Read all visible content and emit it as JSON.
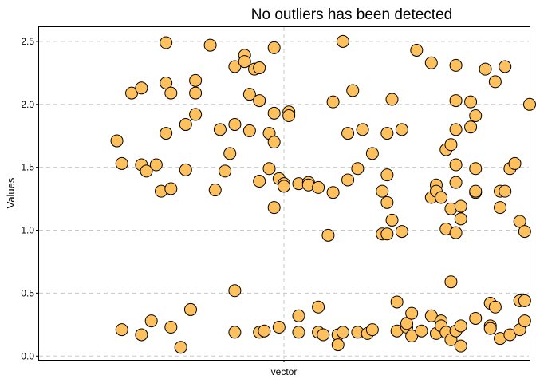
{
  "chart_data": {
    "type": "scatter",
    "title": "No outliers has been detected",
    "xlabel": "",
    "ylabel": "Values",
    "categories": [
      "vector"
    ],
    "ylim": [
      -0.03,
      2.62
    ],
    "yticks": [
      0.0,
      0.5,
      1.0,
      1.5,
      2.0,
      2.5
    ],
    "ytick_labels": [
      "0.0",
      "0.5",
      "1.0",
      "1.5",
      "2.0",
      "2.5"
    ],
    "grid": true,
    "point_fill": "#ffc05e",
    "point_stroke": "#000000",
    "grid_color": "#c8c8c8",
    "x_range": [
      0.5,
      1.5
    ],
    "series": [
      {
        "values": [
          [
            0.66,
            1.71
          ],
          [
            0.67,
            1.53
          ],
          [
            0.67,
            0.21
          ],
          [
            0.69,
            2.09
          ],
          [
            0.71,
            2.13
          ],
          [
            0.71,
            0.17
          ],
          [
            0.71,
            1.52
          ],
          [
            0.72,
            1.47
          ],
          [
            0.73,
            0.28
          ],
          [
            0.74,
            1.52
          ],
          [
            0.75,
            1.31
          ],
          [
            0.76,
            2.17
          ],
          [
            0.76,
            1.77
          ],
          [
            0.76,
            2.49
          ],
          [
            0.77,
            2.09
          ],
          [
            0.77,
            0.23
          ],
          [
            0.77,
            1.33
          ],
          [
            0.79,
            0.07
          ],
          [
            0.8,
            1.48
          ],
          [
            0.8,
            1.84
          ],
          [
            0.81,
            0.37
          ],
          [
            0.82,
            2.09
          ],
          [
            0.82,
            2.19
          ],
          [
            0.82,
            1.92
          ],
          [
            0.85,
            2.47
          ],
          [
            0.86,
            1.32
          ],
          [
            0.87,
            1.8
          ],
          [
            0.88,
            1.47
          ],
          [
            0.89,
            1.61
          ],
          [
            0.9,
            0.52
          ],
          [
            0.9,
            1.84
          ],
          [
            0.9,
            2.3
          ],
          [
            0.9,
            0.19
          ],
          [
            0.92,
            2.39
          ],
          [
            0.92,
            2.34
          ],
          [
            0.93,
            2.08
          ],
          [
            0.93,
            1.79
          ],
          [
            0.94,
            2.28
          ],
          [
            0.95,
            2.03
          ],
          [
            0.95,
            2.29
          ],
          [
            0.95,
            1.39
          ],
          [
            0.95,
            0.19
          ],
          [
            0.96,
            0.2
          ],
          [
            0.97,
            1.77
          ],
          [
            0.97,
            1.49
          ],
          [
            0.98,
            2.45
          ],
          [
            0.98,
            1.93
          ],
          [
            0.98,
            1.18
          ],
          [
            0.98,
            1.7
          ],
          [
            0.99,
            1.41
          ],
          [
            0.99,
            0.23
          ],
          [
            1.0,
            1.37
          ],
          [
            1.0,
            1.35
          ],
          [
            1.01,
            1.94
          ],
          [
            1.01,
            1.91
          ],
          [
            1.03,
            0.32
          ],
          [
            1.03,
            1.37
          ],
          [
            1.03,
            0.19
          ],
          [
            1.05,
            1.38
          ],
          [
            1.05,
            1.36
          ],
          [
            1.07,
            0.19
          ],
          [
            1.07,
            0.39
          ],
          [
            1.07,
            1.34
          ],
          [
            1.08,
            0.17
          ],
          [
            1.09,
            0.96
          ],
          [
            1.1,
            1.3
          ],
          [
            1.1,
            2.02
          ],
          [
            1.11,
            0.17
          ],
          [
            1.11,
            0.09
          ],
          [
            1.12,
            0.19
          ],
          [
            1.12,
            2.5
          ],
          [
            1.13,
            1.77
          ],
          [
            1.13,
            1.4
          ],
          [
            1.14,
            2.11
          ],
          [
            1.15,
            1.49
          ],
          [
            1.15,
            0.19
          ],
          [
            1.16,
            1.8
          ],
          [
            1.17,
            0.18
          ],
          [
            1.18,
            1.61
          ],
          [
            1.18,
            0.21
          ],
          [
            1.2,
            1.31
          ],
          [
            1.2,
            0.97
          ],
          [
            1.21,
            1.22
          ],
          [
            1.21,
            1.44
          ],
          [
            1.21,
            1.77
          ],
          [
            1.21,
            0.97
          ],
          [
            1.22,
            2.04
          ],
          [
            1.22,
            1.08
          ],
          [
            1.23,
            0.43
          ],
          [
            1.23,
            0.2
          ],
          [
            1.24,
            1.8
          ],
          [
            1.24,
            0.99
          ],
          [
            1.25,
            0.23
          ],
          [
            1.25,
            0.26
          ],
          [
            1.26,
            0.16
          ],
          [
            1.26,
            0.34
          ],
          [
            1.27,
            2.43
          ],
          [
            1.28,
            0.2
          ],
          [
            1.3,
            2.33
          ],
          [
            1.3,
            1.26
          ],
          [
            1.3,
            0.32
          ],
          [
            1.31,
            1.36
          ],
          [
            1.31,
            1.31
          ],
          [
            1.31,
            0.18
          ],
          [
            1.32,
            1.26
          ],
          [
            1.32,
            0.28
          ],
          [
            1.32,
            0.24
          ],
          [
            1.33,
            1.01
          ],
          [
            1.33,
            1.64
          ],
          [
            1.33,
            0.19
          ],
          [
            1.34,
            1.68
          ],
          [
            1.34,
            1.17
          ],
          [
            1.34,
            0.59
          ],
          [
            1.34,
            0.13
          ],
          [
            1.35,
            2.31
          ],
          [
            1.35,
            2.03
          ],
          [
            1.35,
            1.8
          ],
          [
            1.35,
            1.38
          ],
          [
            1.35,
            1.52
          ],
          [
            1.35,
            0.98
          ],
          [
            1.35,
            0.2
          ],
          [
            1.36,
            0.08
          ],
          [
            1.36,
            1.19
          ],
          [
            1.36,
            1.09
          ],
          [
            1.36,
            0.24
          ],
          [
            1.38,
            1.82
          ],
          [
            1.38,
            2.02
          ],
          [
            1.39,
            1.91
          ],
          [
            1.39,
            1.49
          ],
          [
            1.39,
            1.3
          ],
          [
            1.39,
            1.31
          ],
          [
            1.39,
            0.3
          ],
          [
            1.41,
            2.28
          ],
          [
            1.42,
            0.24
          ],
          [
            1.42,
            0.42
          ],
          [
            1.42,
            0.22
          ],
          [
            1.43,
            0.39
          ],
          [
            1.43,
            2.18
          ],
          [
            1.44,
            0.14
          ],
          [
            1.44,
            1.18
          ],
          [
            1.44,
            1.31
          ],
          [
            1.45,
            2.3
          ],
          [
            1.45,
            1.31
          ],
          [
            1.46,
            1.49
          ],
          [
            1.46,
            0.17
          ],
          [
            1.47,
            1.53
          ],
          [
            1.48,
            1.07
          ],
          [
            1.48,
            0.44
          ],
          [
            1.48,
            0.21
          ],
          [
            1.49,
            0.99
          ],
          [
            1.49,
            0.28
          ],
          [
            1.49,
            0.44
          ],
          [
            1.5,
            2.0
          ]
        ]
      }
    ]
  }
}
